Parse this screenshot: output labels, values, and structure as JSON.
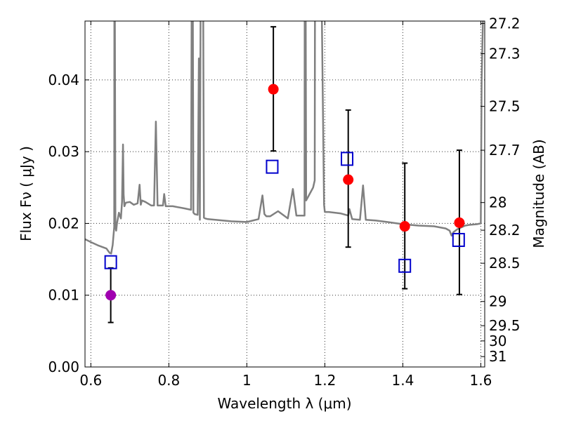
{
  "colors": {
    "spectrum": "#808080",
    "observed_point": "#ff0000",
    "observed_point_violet": "#a000b0",
    "model_box": "#0000cc",
    "axis": "#000000",
    "grid": "#333333",
    "background": "#ffffff"
  },
  "chart_data": {
    "type": "scatter",
    "title": "",
    "xlabel": "Wavelength  λ (μm)",
    "ylabel": "Flux  Fν  ( μJy )",
    "ylabel_right": "Magnitude (AB)",
    "xlim": [
      0.585,
      1.61
    ],
    "ylim": [
      0.0,
      0.0482
    ],
    "grid": true,
    "legend": "none",
    "x_ticks": [
      0.6,
      0.8,
      1.0,
      1.2,
      1.4,
      1.6
    ],
    "x_tick_labels": [
      "0.6",
      "0.8",
      "1",
      "1.2",
      "1.4",
      "1.6"
    ],
    "y_ticks": [
      0.0,
      0.01,
      0.02,
      0.03,
      0.04
    ],
    "y_tick_labels": [
      "0.00",
      "0.01",
      "0.02",
      "0.03",
      "0.04"
    ],
    "right_ticks": [
      {
        "label": "27.2",
        "mag": 27.2
      },
      {
        "label": "27.3",
        "mag": 27.3
      },
      {
        "label": "27.5",
        "mag": 27.5
      },
      {
        "label": "27.7",
        "mag": 27.7
      },
      {
        "label": "28",
        "mag": 28.0
      },
      {
        "label": "28.2",
        "mag": 28.2
      },
      {
        "label": "28.5",
        "mag": 28.5
      },
      {
        "label": "29",
        "mag": 29.0
      },
      {
        "label": "29.5",
        "mag": 29.5
      },
      {
        "label": "30",
        "mag": 30.0
      },
      {
        "label": "31",
        "mag": 31.0
      }
    ],
    "series": [
      {
        "kind": "model-spectrum",
        "x": [
          0.585,
          0.6,
          0.62,
          0.64,
          0.648,
          0.652,
          0.656,
          0.66,
          0.6605,
          0.661,
          0.663,
          0.665,
          0.667,
          0.672,
          0.677,
          0.68,
          0.6825,
          0.684,
          0.686,
          0.688,
          0.69,
          0.7,
          0.71,
          0.72,
          0.725,
          0.728,
          0.731,
          0.74,
          0.755,
          0.762,
          0.7667,
          0.771,
          0.785,
          0.788,
          0.792,
          0.81,
          0.84,
          0.857,
          0.859,
          0.861,
          0.863,
          0.866,
          0.874,
          0.877,
          0.8795,
          0.882,
          0.885,
          0.8875,
          0.89,
          0.893,
          0.9,
          0.96,
          1.0,
          1.03,
          1.04,
          1.045,
          1.05,
          1.06,
          1.08,
          1.105,
          1.118,
          1.127,
          1.14,
          1.148,
          1.1485,
          1.1495,
          1.1505,
          1.152,
          1.16,
          1.17,
          1.174,
          1.175,
          1.19,
          1.198,
          1.2,
          1.201,
          1.202,
          1.21,
          1.24,
          1.26,
          1.263,
          1.27,
          1.29,
          1.298,
          1.305,
          1.33,
          1.36,
          1.4,
          1.44,
          1.48,
          1.51,
          1.52,
          1.525,
          1.53,
          1.54,
          1.56,
          1.57,
          1.59,
          1.6,
          1.602,
          1.61
        ],
        "y": [
          0.0178,
          0.0174,
          0.0169,
          0.0165,
          0.0159,
          0.0158,
          0.017,
          0.0195,
          0.06,
          0.06,
          0.0195,
          0.019,
          0.02,
          0.0215,
          0.0207,
          0.023,
          0.031,
          0.024,
          0.0224,
          0.0227,
          0.0229,
          0.023,
          0.0226,
          0.0228,
          0.0254,
          0.0226,
          0.0232,
          0.023,
          0.0225,
          0.0225,
          0.0342,
          0.0225,
          0.0225,
          0.0241,
          0.0224,
          0.0224,
          0.0221,
          0.0219,
          0.06,
          0.06,
          0.0215,
          0.0213,
          0.0212,
          0.043,
          0.0205,
          0.06,
          0.06,
          0.06,
          0.0208,
          0.0207,
          0.0206,
          0.0203,
          0.0202,
          0.0206,
          0.0239,
          0.0213,
          0.021,
          0.021,
          0.0217,
          0.0207,
          0.0248,
          0.0211,
          0.0211,
          0.0211,
          0.06,
          0.06,
          0.06,
          0.0232,
          0.024,
          0.025,
          0.026,
          0.06,
          0.06,
          0.0226,
          0.0216,
          0.0216,
          0.0216,
          0.0216,
          0.0214,
          0.0211,
          0.022,
          0.0206,
          0.0205,
          0.0253,
          0.0205,
          0.0204,
          0.0202,
          0.0199,
          0.0197,
          0.0196,
          0.0193,
          0.019,
          0.0183,
          0.0188,
          0.0192,
          0.0197,
          0.0198,
          0.0199,
          0.02,
          0.04,
          0.06
        ]
      },
      {
        "kind": "model-photometry",
        "marker": "open-square",
        "x": [
          0.651,
          1.065,
          1.257,
          1.405,
          1.543
        ],
        "y": [
          0.0146,
          0.0279,
          0.029,
          0.0141,
          0.0177
        ]
      },
      {
        "kind": "observed",
        "marker": "filled-circle",
        "points": [
          {
            "x": 0.651,
            "y": 0.01,
            "err_low": 0.0062,
            "err_high": 0.0138,
            "color": "violet"
          },
          {
            "x": 1.068,
            "y": 0.0387,
            "err_low": 0.0301,
            "err_high": 0.0474,
            "color": "red"
          },
          {
            "x": 1.26,
            "y": 0.0261,
            "err_low": 0.0167,
            "err_high": 0.0358,
            "color": "red"
          },
          {
            "x": 1.405,
            "y": 0.0196,
            "err_low": 0.0109,
            "err_high": 0.0284,
            "color": "red"
          },
          {
            "x": 1.545,
            "y": 0.0201,
            "err_low": 0.0101,
            "err_high": 0.0302,
            "color": "red"
          }
        ]
      }
    ]
  }
}
